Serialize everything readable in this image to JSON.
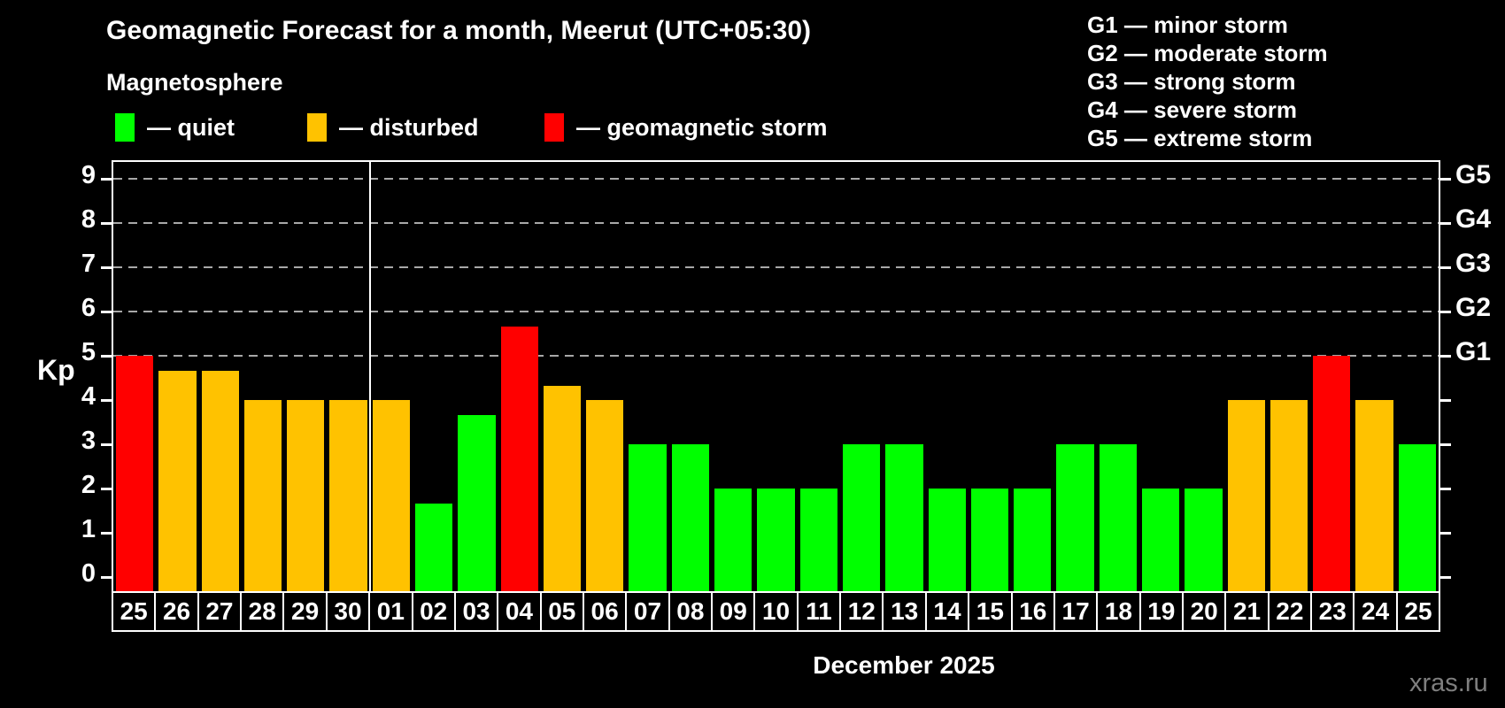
{
  "title": "Geomagnetic Forecast for a month, Meerut (UTC+05:30)",
  "subtitle": "Magnetosphere",
  "bar_legend": [
    {
      "status": "quiet",
      "label": "— quiet",
      "color": "#00ff00"
    },
    {
      "status": "disturbed",
      "label": "— disturbed",
      "color": "#ffc200"
    },
    {
      "status": "storm",
      "label": "— geomagnetic storm",
      "color": "#ff0000"
    }
  ],
  "storm_scale_legend": [
    "G1 — minor storm",
    "G2 — moderate storm",
    "G3 — strong storm",
    "G4 — severe storm",
    "G5 — extreme storm"
  ],
  "xaxis_title": "December 2025",
  "watermark": "xras.ru",
  "chart_data": {
    "type": "bar",
    "title": "Geomagnetic Forecast for a month, Meerut (UTC+05:30)",
    "ylabel": "Kp",
    "xlabel": "December 2025",
    "categories": [
      "25",
      "26",
      "27",
      "28",
      "29",
      "30",
      "01",
      "02",
      "03",
      "04",
      "05",
      "06",
      "07",
      "08",
      "09",
      "10",
      "11",
      "12",
      "13",
      "14",
      "15",
      "16",
      "17",
      "18",
      "19",
      "20",
      "21",
      "22",
      "23",
      "24",
      "25"
    ],
    "values": [
      5,
      4.67,
      4.67,
      4,
      4,
      4,
      4,
      1.67,
      3.67,
      5.67,
      4.33,
      4,
      3,
      3,
      2,
      2,
      2,
      3,
      3,
      2,
      2,
      2,
      3,
      3,
      2,
      2,
      4,
      4,
      5,
      4,
      3
    ],
    "statuses": [
      "storm",
      "disturbed",
      "disturbed",
      "disturbed",
      "disturbed",
      "disturbed",
      "disturbed",
      "quiet",
      "quiet",
      "storm",
      "disturbed",
      "disturbed",
      "quiet",
      "quiet",
      "quiet",
      "quiet",
      "quiet",
      "quiet",
      "quiet",
      "quiet",
      "quiet",
      "quiet",
      "quiet",
      "quiet",
      "quiet",
      "quiet",
      "disturbed",
      "disturbed",
      "storm",
      "disturbed",
      "quiet"
    ],
    "status_colors": {
      "quiet": "#00ff00",
      "disturbed": "#ffc200",
      "storm": "#ff0000"
    },
    "ylim": [
      -0.32,
      9.38
    ],
    "yticks": [
      0,
      1,
      2,
      3,
      4,
      5,
      6,
      7,
      8,
      9
    ],
    "gridlines_at": [
      5,
      6,
      7,
      8,
      9
    ],
    "right_axis_labels": [
      {
        "label": "G1",
        "value": 5
      },
      {
        "label": "G2",
        "value": 6
      },
      {
        "label": "G3",
        "value": 7
      },
      {
        "label": "G4",
        "value": 8
      },
      {
        "label": "G5",
        "value": 9
      }
    ],
    "month_separator_after_index": 5,
    "grid": "dashed horizontal lines at G-storm levels only",
    "legend_position": "top"
  }
}
